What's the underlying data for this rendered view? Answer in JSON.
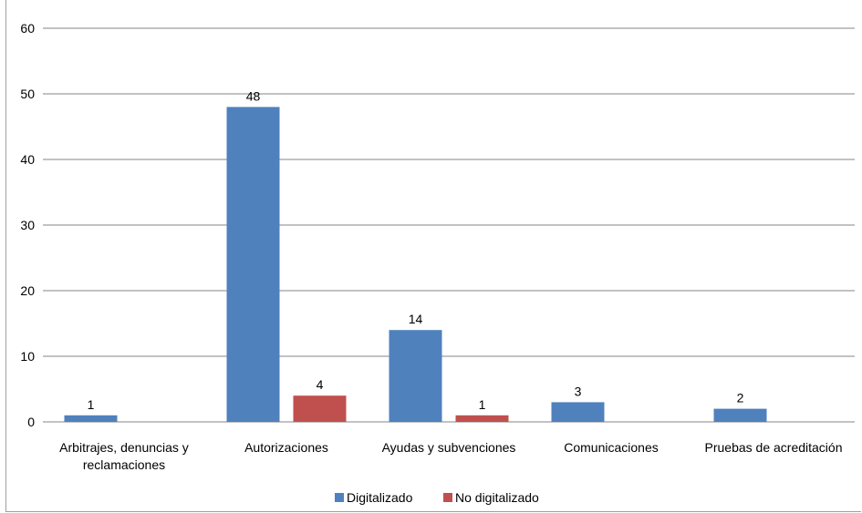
{
  "chart_data": {
    "type": "bar",
    "categories": [
      [
        "Arbitrajes, denuncias y",
        "reclamaciones"
      ],
      [
        "Autorizaciones"
      ],
      [
        "Ayudas y subvenciones"
      ],
      [
        "Comunicaciones"
      ],
      [
        "Pruebas de acreditación"
      ]
    ],
    "series": [
      {
        "name": "Digitalizado",
        "color": "#4f81bd",
        "values": [
          1,
          48,
          14,
          3,
          2
        ]
      },
      {
        "name": "No digitalizado",
        "color": "#c0504d",
        "values": [
          null,
          4,
          1,
          null,
          null
        ]
      }
    ],
    "ylim": [
      0,
      60
    ],
    "yticks": [
      0,
      10,
      20,
      30,
      40,
      50,
      60
    ],
    "grid": true,
    "legend_position": "bottom",
    "title": "",
    "xlabel": "",
    "ylabel": ""
  }
}
